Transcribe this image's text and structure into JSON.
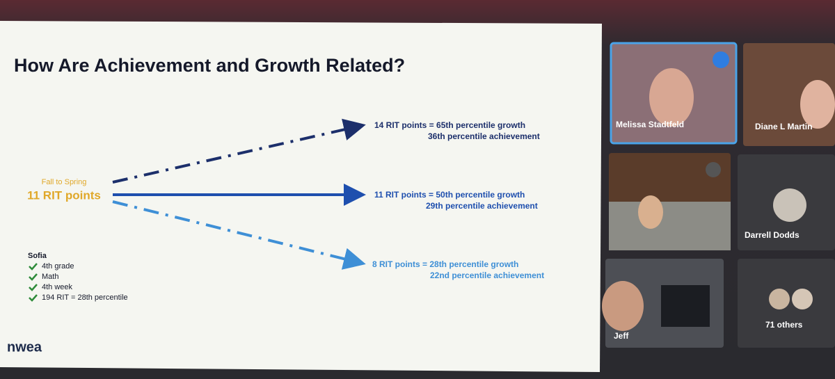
{
  "slide": {
    "title": "How Are Achievement and Growth Related?",
    "start": {
      "period": "Fall to Spring",
      "points": "11 RIT points"
    },
    "outcomes": [
      {
        "growth": "14 RIT points = 65th percentile growth",
        "achievement": "36th percentile achievement"
      },
      {
        "growth": "11 RIT points = 50th percentile growth",
        "achievement": "29th percentile achievement"
      },
      {
        "growth": "8 RIT points = 28th percentile growth",
        "achievement": "22nd percentile achievement"
      }
    ],
    "student": {
      "name": "Sofia",
      "items": [
        "4th grade",
        "Math",
        "4th week",
        "194 RIT = 28th percentile"
      ]
    },
    "logo": "nwea"
  },
  "participants": {
    "names": [
      "Melissa Stadtfeld",
      "Diane L Martin",
      "Darrell Dodds",
      "Jeff"
    ],
    "others": "71 others"
  }
}
